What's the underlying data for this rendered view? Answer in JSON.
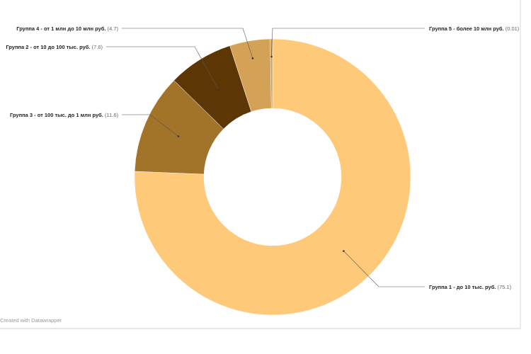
{
  "chart_data": {
    "type": "pie",
    "variant": "donut",
    "categories": [
      "Группа 1 - до 10 тыс. руб.",
      "Группа 2 - от 10 до 100 тыс. руб.",
      "Группа 3 - от 100 тыс. до 1 млн руб.",
      "Группа 4 - от 1 млн до 10 млн руб.",
      "Группа 5 - более 10 млн руб."
    ],
    "values": [
      75.1,
      7.6,
      11.6,
      4.7,
      0.01
    ],
    "value_labels": [
      "(75.1)",
      "(7.6)",
      "(11.6)",
      "(4.7)",
      "(0.01)"
    ],
    "slice_order": [
      0,
      2,
      1,
      3,
      4
    ],
    "colors": [
      "#fec979",
      "#5c3604",
      "#a1742a",
      "#d3a256",
      "#c8a060"
    ],
    "legend": "none",
    "labels_style": "callouts"
  },
  "credit": "Created with Datawrapper"
}
